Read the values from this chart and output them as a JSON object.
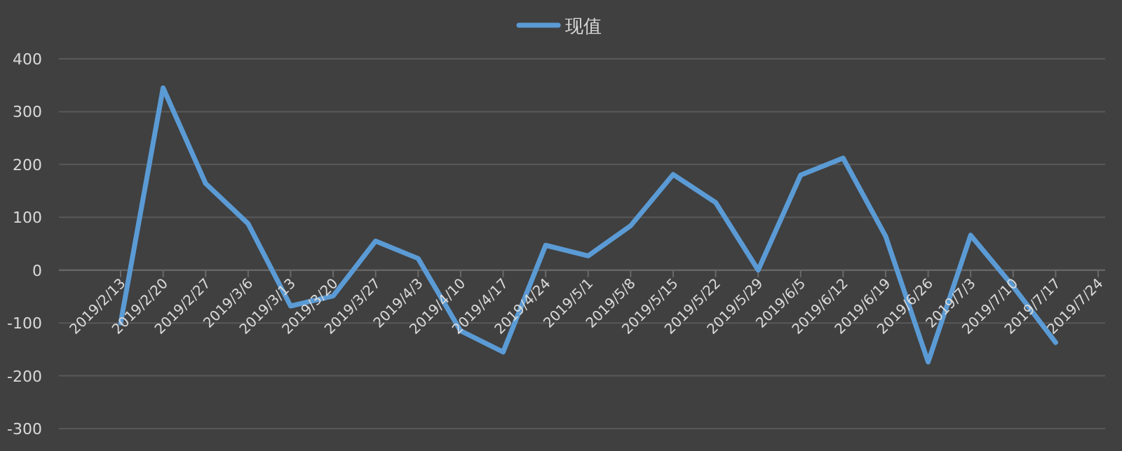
{
  "chart_data": {
    "type": "line",
    "categories": [
      "2019/2/13",
      "2019/2/20",
      "2019/2/27",
      "2019/3/6",
      "2019/3/13",
      "2019/3/20",
      "2019/3/27",
      "2019/4/3",
      "2019/4/10",
      "2019/4/17",
      "2019/4/24",
      "2019/5/1",
      "2019/5/8",
      "2019/5/15",
      "2019/5/22",
      "2019/5/29",
      "2019/6/5",
      "2019/6/12",
      "2019/6/19",
      "2019/6/26",
      "2019/7/3",
      "2019/7/10",
      "2019/7/17",
      "2019/7/24"
    ],
    "series": [
      {
        "name": "现值",
        "color": "#5b9bd5",
        "values": [
          -100,
          345,
          164,
          88,
          -68,
          -49,
          55,
          22,
          -115,
          -155,
          47,
          27,
          84,
          181,
          128,
          0,
          180,
          212,
          64,
          -174,
          66,
          -31,
          -137,
          null
        ]
      }
    ],
    "ylim": [
      -300,
      400
    ],
    "yticks": [
      -300,
      -200,
      -100,
      0,
      100,
      200,
      300,
      400
    ],
    "grid": "y",
    "legend": "top",
    "marker": "none",
    "line_style": "solid"
  }
}
